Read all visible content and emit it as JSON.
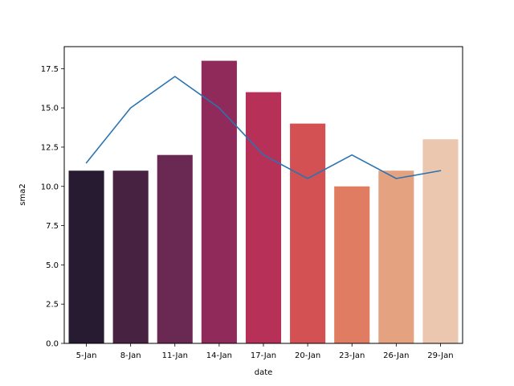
{
  "chart_data": {
    "type": "bar",
    "title": "",
    "xlabel": "date",
    "ylabel": "sma2",
    "categories": [
      "5-Jan",
      "8-Jan",
      "11-Jan",
      "14-Jan",
      "17-Jan",
      "20-Jan",
      "23-Jan",
      "26-Jan",
      "29-Jan"
    ],
    "ylim": [
      0,
      18.9
    ],
    "yticks": [
      "0.0",
      "2.5",
      "5.0",
      "7.5",
      "10.0",
      "12.5",
      "15.0",
      "17.5"
    ],
    "grid": false,
    "series": [
      {
        "type": "bar",
        "values": [
          11,
          11,
          12,
          18,
          16,
          14,
          10,
          11,
          13
        ],
        "colors": [
          "#271b31",
          "#482341",
          "#6a2952",
          "#8f2a5b",
          "#b63058",
          "#d45153",
          "#e07c62",
          "#e5a280",
          "#ebc7b0"
        ]
      },
      {
        "type": "line",
        "values": [
          11.5,
          15,
          17,
          15,
          12,
          10.5,
          12,
          10.5,
          11
        ],
        "color": "#2b74b0"
      }
    ]
  }
}
